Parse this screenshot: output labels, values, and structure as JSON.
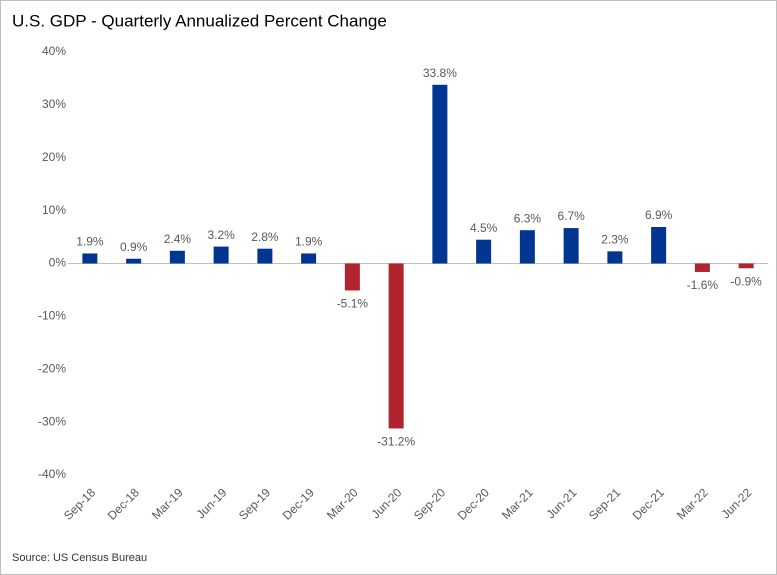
{
  "chart_data": {
    "type": "bar",
    "title": "U.S. GDP - Quarterly Annualized Percent Change",
    "source": "Source: US Census Bureau",
    "categories": [
      "Sep-18",
      "Dec-18",
      "Mar-19",
      "Jun-19",
      "Sep-19",
      "Dec-19",
      "Mar-20",
      "Jun-20",
      "Sep-20",
      "Dec-20",
      "Mar-21",
      "Jun-21",
      "Sep-21",
      "Dec-21",
      "Mar-22",
      "Jun-22"
    ],
    "values": [
      1.9,
      0.9,
      2.4,
      3.2,
      2.8,
      1.9,
      -5.1,
      -31.2,
      33.8,
      4.5,
      6.3,
      6.7,
      2.3,
      6.9,
      -1.6,
      -0.9
    ],
    "value_labels": [
      "1.9%",
      "0.9%",
      "2.4%",
      "3.2%",
      "2.8%",
      "1.9%",
      "-5.1%",
      "-31.2%",
      "33.8%",
      "4.5%",
      "6.3%",
      "6.7%",
      "2.3%",
      "6.9%",
      "-1.6%",
      "-0.9%"
    ],
    "positive_color": "#003591",
    "negative_color": "#b0232f",
    "ylim": [
      -40,
      40
    ],
    "yticks": [
      {
        "value": -40,
        "label": "-40%"
      },
      {
        "value": -30,
        "label": "-30%"
      },
      {
        "value": -20,
        "label": "-20%"
      },
      {
        "value": -10,
        "label": "-10%"
      },
      {
        "value": 0,
        "label": "0%"
      },
      {
        "value": 10,
        "label": "10%"
      },
      {
        "value": 20,
        "label": "20%"
      },
      {
        "value": 30,
        "label": "30%"
      },
      {
        "value": 40,
        "label": "40%"
      }
    ],
    "grid": false
  }
}
